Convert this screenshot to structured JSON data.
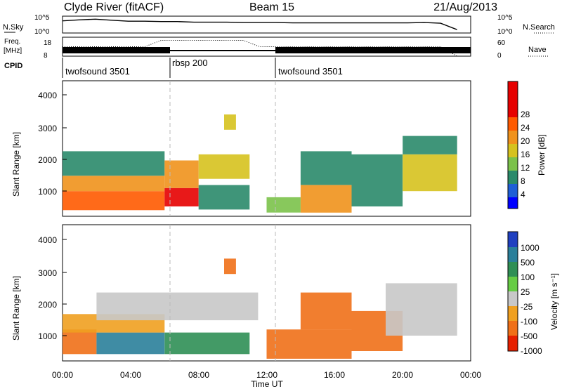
{
  "header": {
    "station": "Clyde River (fitACF)",
    "beam": "Beam 15",
    "date": "21/Aug/2013"
  },
  "labels": {
    "nsky": "N.Sky",
    "freq_line1": "Freq.",
    "freq_line2": "[MHz]",
    "cpid": "CPID",
    "nsearch": "N.Search",
    "nave": "Nave",
    "slant_range": "Slant Range [km]",
    "x_axis": "Time UT",
    "power_cb": "Power [dB]",
    "velocity_cb": "Velocity  [m s⁻¹]"
  },
  "noise_axis": {
    "left_top": "10^5",
    "left_bottom": "10^0",
    "right_top": "10^5",
    "right_bottom": "10^0"
  },
  "freq_axis": {
    "left_top": "18",
    "left_bottom": "8",
    "right_top": "60",
    "right_bottom": "0"
  },
  "cpid_segments": [
    {
      "label": "twofsound 3501",
      "start": 0,
      "end": 6
    },
    {
      "label": "rbsp 200",
      "start": 6,
      "end": 12
    },
    {
      "label": "twofsound 3501",
      "start": 12,
      "end": 23.2
    }
  ],
  "x_ticks": [
    "00:00",
    "04:00",
    "08:00",
    "12:00",
    "16:00",
    "20:00",
    "00:00"
  ],
  "y_ticks": [
    "1000",
    "2000",
    "3000",
    "4000"
  ],
  "power_ticks": [
    "4",
    "8",
    "12",
    "16",
    "20",
    "24",
    "28"
  ],
  "velocity_ticks": [
    "1000",
    "500",
    "100",
    "25",
    "-25",
    "-100",
    "-500",
    "-1000"
  ],
  "colors": {
    "power_scale": [
      "#0000ff",
      "#1f5fd6",
      "#2a8a6a",
      "#7bc24a",
      "#d6c21e",
      "#f0921c",
      "#ff5a00",
      "#e60000"
    ],
    "velocity_scale": [
      "#2040c0",
      "#2a7f9a",
      "#2f8f55",
      "#66cc44",
      "#c8c8c8",
      "#f0a020",
      "#f07018",
      "#e62000"
    ]
  },
  "chart_data": [
    {
      "type": "heatmap",
      "title": "Power [dB]",
      "xlabel": "",
      "ylabel": "Slant Range [km]",
      "xlim": [
        0,
        24
      ],
      "ylim": [
        180,
        4600
      ],
      "colorbar_range": [
        0,
        32
      ],
      "regions": [
        {
          "t0": 0.0,
          "t1": 6.0,
          "r0": 380,
          "r1": 1000,
          "v": 27
        },
        {
          "t0": 0.0,
          "t1": 6.0,
          "r0": 1000,
          "r1": 1500,
          "v": 20
        },
        {
          "t0": 0.0,
          "t1": 6.0,
          "r0": 1500,
          "r1": 2300,
          "v": 10
        },
        {
          "t0": 6.0,
          "t1": 8.0,
          "r0": 500,
          "r1": 1100,
          "v": 29
        },
        {
          "t0": 6.0,
          "t1": 8.0,
          "r0": 1100,
          "r1": 2000,
          "v": 22
        },
        {
          "t0": 8.0,
          "t1": 11.0,
          "r0": 400,
          "r1": 1200,
          "v": 8
        },
        {
          "t0": 8.0,
          "t1": 11.0,
          "r0": 1400,
          "r1": 2200,
          "v": 16
        },
        {
          "t0": 9.5,
          "t1": 10.2,
          "r0": 3000,
          "r1": 3500,
          "v": 18
        },
        {
          "t0": 12.0,
          "t1": 14.0,
          "r0": 300,
          "r1": 800,
          "v": 14
        },
        {
          "t0": 14.0,
          "t1": 17.0,
          "r0": 300,
          "r1": 1200,
          "v": 23
        },
        {
          "t0": 14.0,
          "t1": 17.0,
          "r0": 1200,
          "r1": 2300,
          "v": 10
        },
        {
          "t0": 17.0,
          "t1": 20.0,
          "r0": 500,
          "r1": 2200,
          "v": 9
        },
        {
          "t0": 20.0,
          "t1": 23.2,
          "r0": 1000,
          "r1": 2200,
          "v": 18
        },
        {
          "t0": 20.0,
          "t1": 23.2,
          "r0": 2200,
          "r1": 2800,
          "v": 8
        }
      ]
    },
    {
      "type": "heatmap",
      "title": "Velocity [m s-1]",
      "xlabel": "Time UT",
      "ylabel": "Slant Range [km]",
      "xlim": [
        0,
        24
      ],
      "ylim": [
        180,
        4600
      ],
      "colorbar_range": [
        -1000,
        1000
      ],
      "regions": [
        {
          "t0": 0.0,
          "t1": 2.0,
          "r0": 400,
          "r1": 1200,
          "v": -150
        },
        {
          "t0": 2.0,
          "t1": 6.0,
          "r0": 400,
          "r1": 1100,
          "v": 500
        },
        {
          "t0": 0.0,
          "t1": 6.0,
          "r0": 1100,
          "r1": 1700,
          "v": -60
        },
        {
          "t0": 2.0,
          "t1": 11.5,
          "r0": 1500,
          "r1": 2400,
          "v": 0
        },
        {
          "t0": 6.0,
          "t1": 11.0,
          "r0": 400,
          "r1": 1100,
          "v": 200
        },
        {
          "t0": 9.5,
          "t1": 10.2,
          "r0": 3000,
          "r1": 3500,
          "v": -120
        },
        {
          "t0": 12.0,
          "t1": 17.0,
          "r0": 250,
          "r1": 1200,
          "v": -300
        },
        {
          "t0": 14.0,
          "t1": 17.0,
          "r0": 1200,
          "r1": 2400,
          "v": -250
        },
        {
          "t0": 17.0,
          "t1": 20.0,
          "r0": 500,
          "r1": 1800,
          "v": -120
        },
        {
          "t0": 19.0,
          "t1": 23.2,
          "r0": 1000,
          "r1": 2700,
          "v": 0
        }
      ]
    }
  ],
  "noise_series": {
    "nsky": [
      3.6,
      3.9,
      4.1,
      3.8,
      3.5,
      3.5,
      3.4,
      3.4,
      3.2,
      3.2,
      3.2,
      3.1,
      3.1,
      3.1,
      3.0,
      3.0,
      3.0,
      3.0,
      3.0,
      3.0,
      3.0,
      3.0,
      3.1,
      2.9,
      1.0
    ],
    "nave": [
      30,
      30,
      30,
      30,
      30,
      30,
      50,
      50,
      50,
      50,
      50,
      50,
      30,
      30,
      30,
      30,
      30,
      30,
      30,
      30,
      30,
      30,
      30,
      30,
      0
    ]
  }
}
